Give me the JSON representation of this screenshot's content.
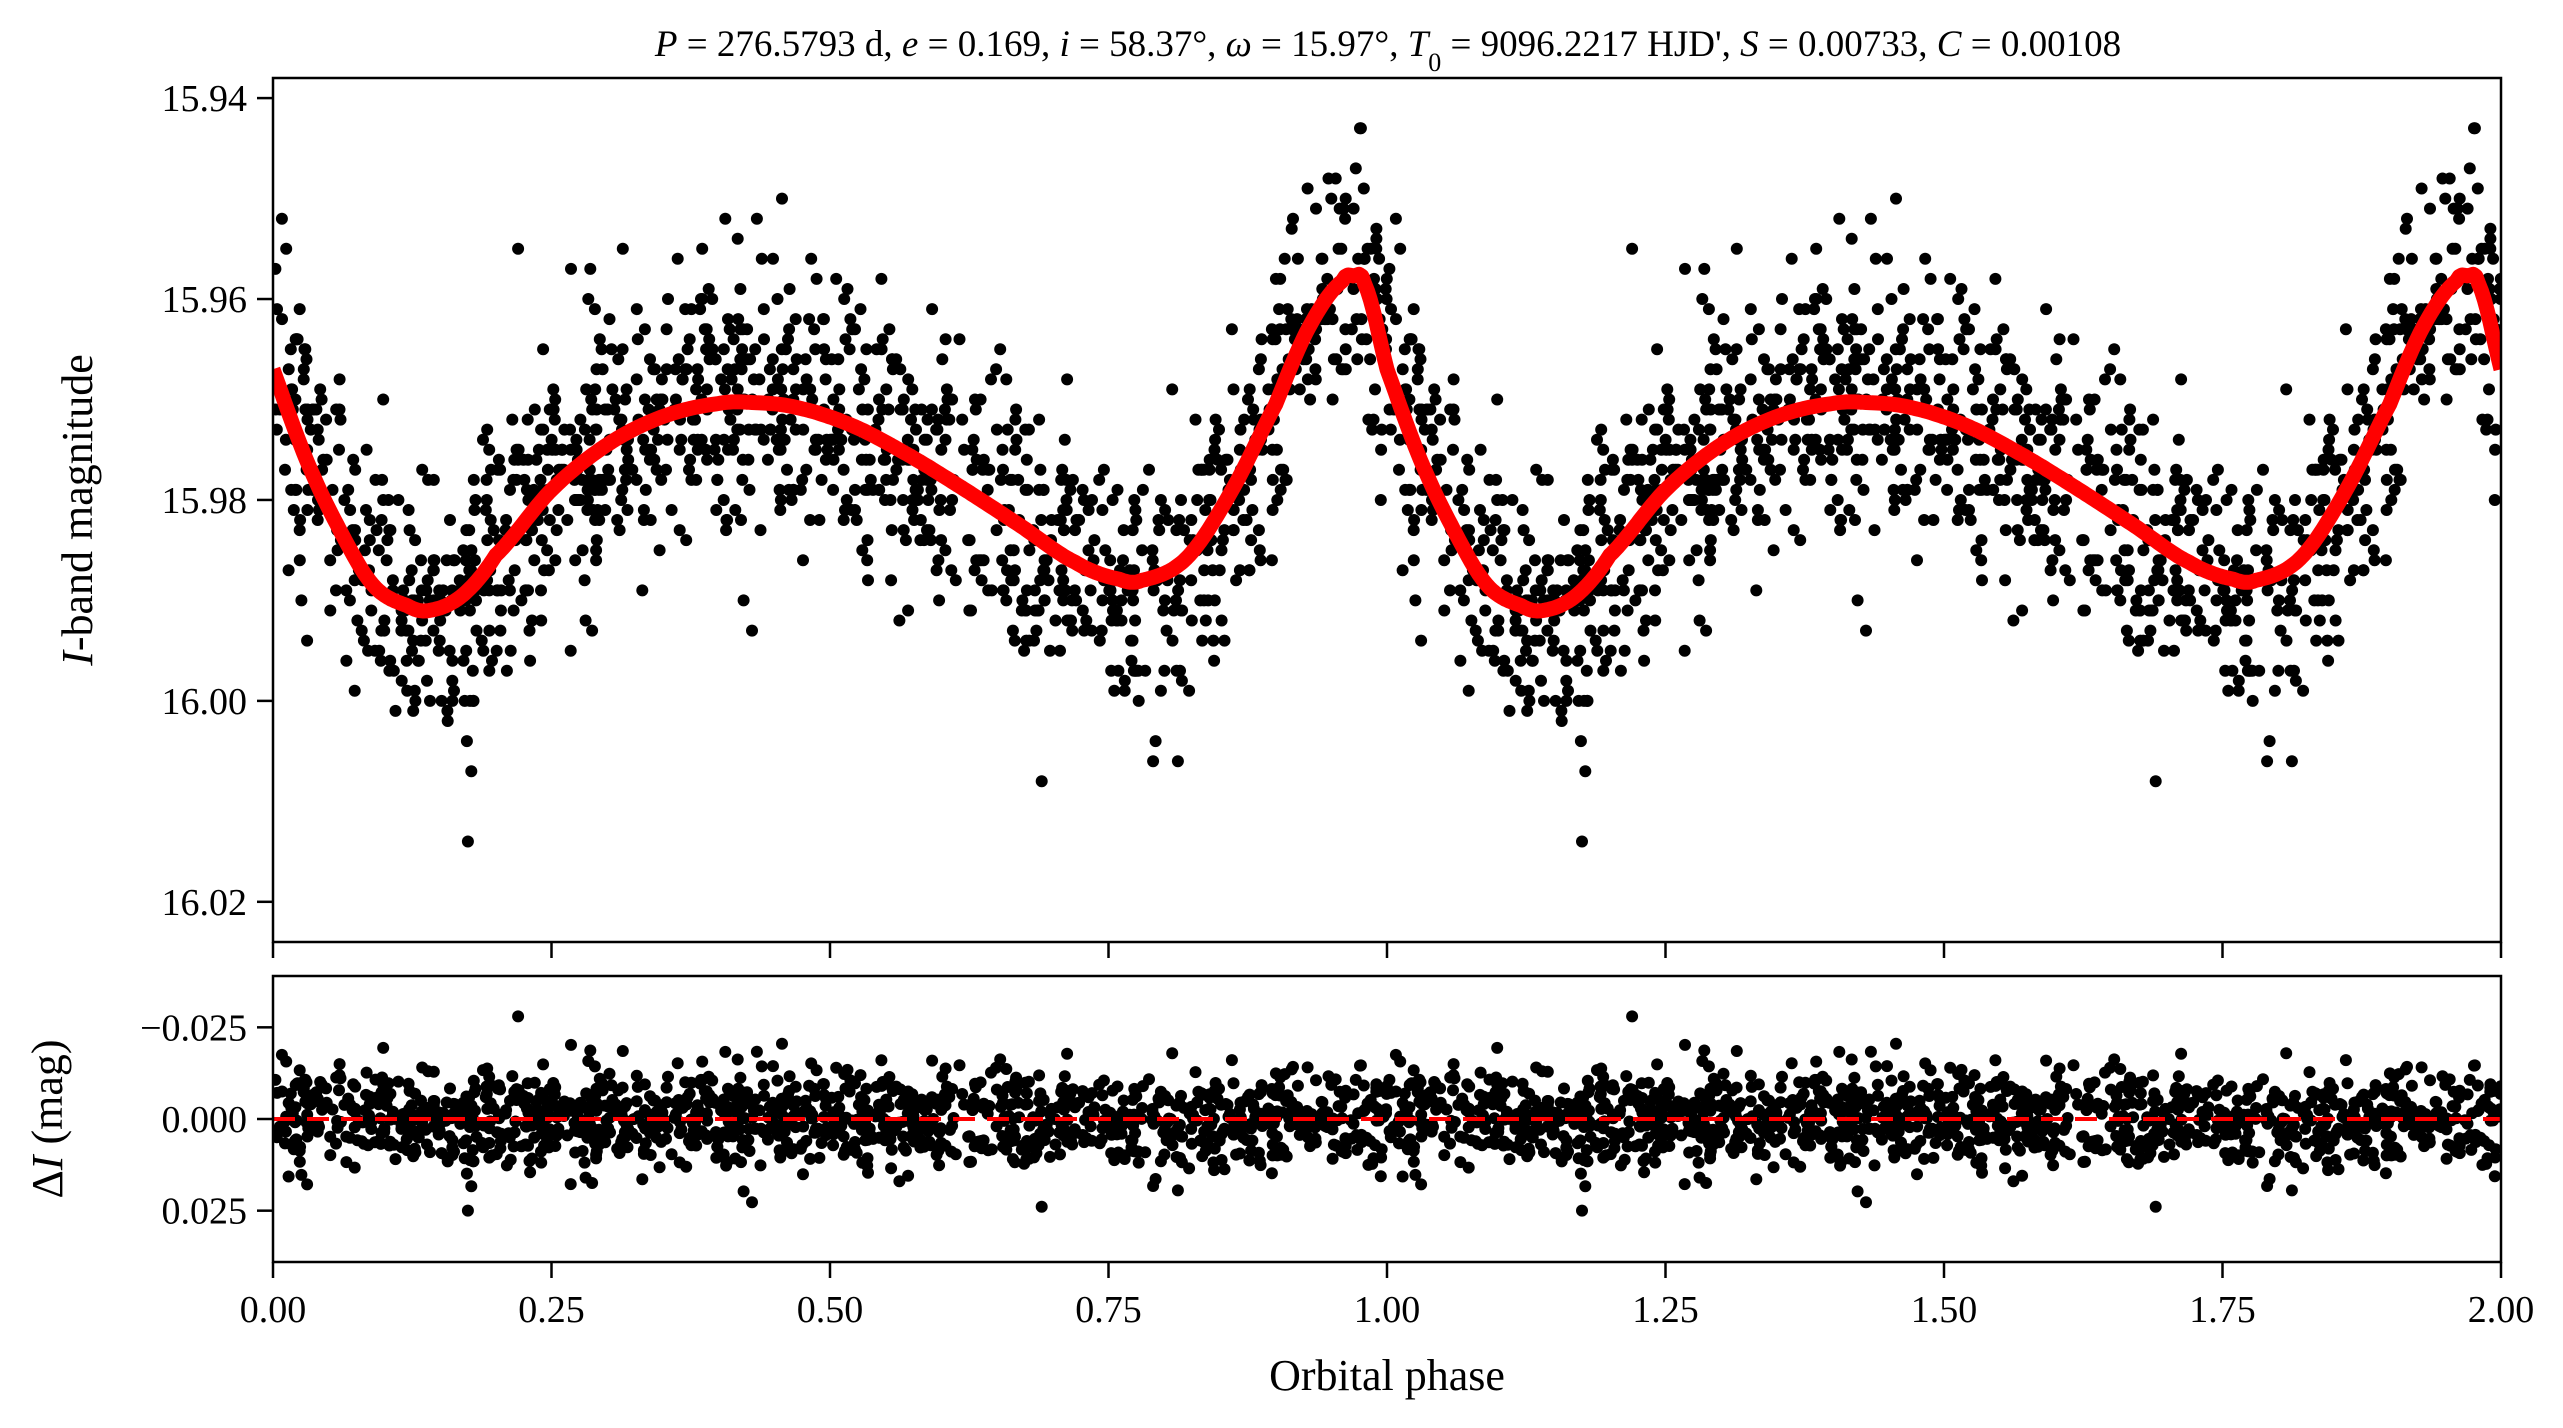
{
  "chart_data": [
    {
      "type": "scatter",
      "panel": "light-curve",
      "title": "P = 276.5793 d, e = 0.169, i = 58.37°, ω = 15.97°, T0 = 9096.2217 HJD', S = 0.00733, C = 0.00108",
      "title_parts": {
        "P_sym": "P",
        "P_val": " = 276.5793 d, ",
        "e_sym": "e",
        "e_val": " = 0.169, ",
        "i_sym": "i",
        "i_val": " = 58.37°, ",
        "w_sym": "ω",
        "w_val": " = 15.97°, ",
        "T_sym": "T",
        "T_sub": "0",
        "T_val": " = 9096.2217 HJD', ",
        "S_sym": "S",
        "S_val": " = 0.00733, ",
        "C_sym": "C",
        "C_val": " = 0.00108"
      },
      "ylabel": "I-band magnitude",
      "ylabel_parts": {
        "italic": "I",
        "rest": "-band magnitude"
      },
      "xlim": [
        0.0,
        2.0
      ],
      "ylim": [
        16.024,
        15.938
      ],
      "y_inverted": true,
      "yticks": [
        15.94,
        15.96,
        15.98,
        16.0,
        16.02
      ],
      "ytick_labels": [
        "15.94",
        "15.96",
        "15.98",
        "16.00",
        "16.02"
      ],
      "xticks": [
        0.0,
        0.25,
        0.5,
        0.75,
        1.0,
        1.25,
        1.5,
        1.75,
        2.0
      ],
      "model": {
        "name": "orbital model",
        "color": "#ff0000",
        "knots_phase": [
          0.0,
          0.03,
          0.06,
          0.09,
          0.12,
          0.14,
          0.17,
          0.2,
          0.25,
          0.3,
          0.35,
          0.4,
          0.43,
          0.47,
          0.52,
          0.57,
          0.62,
          0.67,
          0.72,
          0.76,
          0.78,
          0.82,
          0.86,
          0.9,
          0.93,
          0.96,
          0.97,
          0.98,
          1.0
        ],
        "knots_mag": [
          15.967,
          15.976,
          15.983,
          15.9885,
          15.9905,
          15.991,
          15.9895,
          15.9855,
          15.979,
          15.9745,
          15.9717,
          15.9704,
          15.9703,
          15.9708,
          15.9726,
          15.9755,
          15.9789,
          15.9825,
          15.9862,
          15.9879,
          15.988,
          15.9858,
          15.9792,
          15.9705,
          15.9628,
          15.9582,
          15.9577,
          15.9585,
          15.967
        ]
      },
      "points": {
        "name": "photometric measurements (phase-folded, shown twice)",
        "color": "#000000",
        "count_per_cycle": 1300,
        "scatter_sigma_mag": 0.0069,
        "outliers": [
          {
            "phase": 0.175,
            "mag": 16.014
          },
          {
            "phase": 0.972,
            "mag": 15.947
          },
          {
            "phase": 0.008,
            "mag": 15.952
          },
          {
            "phase": 0.69,
            "mag": 16.008
          },
          {
            "phase": 0.11,
            "mag": 16.001
          },
          {
            "phase": 0.22,
            "mag": 15.955
          },
          {
            "phase": 0.43,
            "mag": 15.993
          },
          {
            "phase": 0.79,
            "mag": 16.006
          }
        ]
      }
    },
    {
      "type": "scatter",
      "panel": "residuals",
      "xlabel": "Orbital phase",
      "ylabel": "ΔI (mag)",
      "ylabel_parts": {
        "delta": "Δ",
        "italic": "I",
        "rest": " (mag)"
      },
      "xlim": [
        0.0,
        2.0
      ],
      "ylim": [
        0.039,
        -0.039
      ],
      "y_inverted": true,
      "yticks": [
        -0.025,
        0.0,
        0.025
      ],
      "ytick_labels": [
        "−0.025",
        "0.000",
        "0.025"
      ],
      "xticks": [
        0.0,
        0.25,
        0.5,
        0.75,
        1.0,
        1.25,
        1.5,
        1.75,
        2.0
      ],
      "xtick_labels": [
        "0.00",
        "0.25",
        "0.50",
        "0.75",
        "1.00",
        "1.25",
        "1.50",
        "1.75",
        "2.00"
      ],
      "zero_line": {
        "value": 0.0,
        "style": "dashed",
        "color": "#ff0000"
      },
      "points": {
        "count_per_cycle": 1300,
        "color": "#000000"
      }
    }
  ]
}
